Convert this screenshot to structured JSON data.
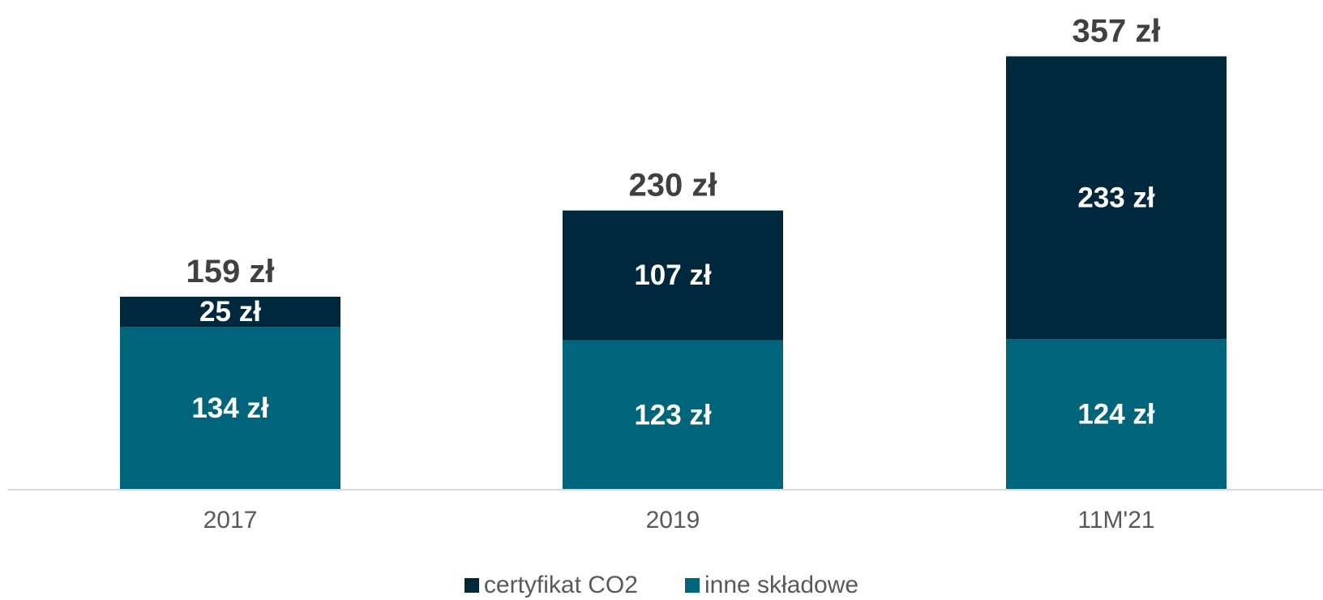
{
  "chart_data": {
    "type": "bar",
    "stacked": true,
    "categories": [
      "2017",
      "2019",
      "11M'21"
    ],
    "series": [
      {
        "name": "inne składowe",
        "values": [
          134,
          123,
          124
        ],
        "labels": [
          "134 zł",
          "123 zł",
          "124 zł"
        ],
        "color": "#00647a"
      },
      {
        "name": "certyfikat CO2",
        "values": [
          25,
          107,
          233
        ],
        "labels": [
          "25 zł",
          "107 zł",
          "233 zł"
        ],
        "color": "#00283c"
      }
    ],
    "totals": [
      159,
      230,
      357
    ],
    "total_labels": [
      "159 zł",
      "230 zł",
      "357 zł"
    ],
    "ylim": [
      0,
      370
    ],
    "grid": false,
    "legend_position": "bottom",
    "title": "",
    "xlabel": "",
    "ylabel": ""
  },
  "legend": {
    "items": [
      {
        "label": "certyfikat CO2",
        "color": "#00283c"
      },
      {
        "label": "inne składowe",
        "color": "#00647a"
      }
    ]
  }
}
